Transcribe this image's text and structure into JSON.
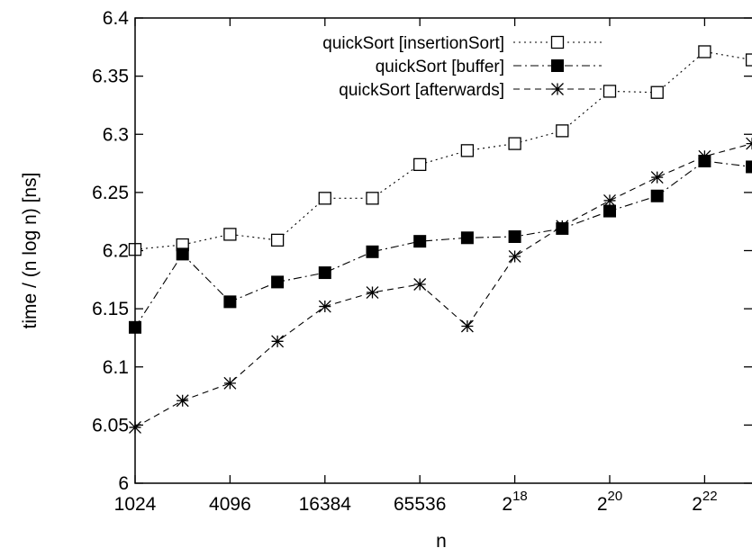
{
  "chart_data": {
    "type": "line",
    "xlabel": "n",
    "ylabel": "time / (n log n) [ns]",
    "xscale": "log2",
    "x": [
      10,
      11,
      12,
      13,
      14,
      15,
      16,
      17,
      18,
      19,
      20,
      21,
      22,
      23
    ],
    "xlim": [
      10,
      23
    ],
    "ylim": [
      6.0,
      6.4
    ],
    "yticks": [
      6,
      6.05,
      6.1,
      6.15,
      6.2,
      6.25,
      6.3,
      6.35,
      6.4
    ],
    "yticklabels": [
      "6",
      "6.05",
      "6.1",
      "6.15",
      "6.2",
      "6.25",
      "6.3",
      "6.35",
      "6.4"
    ],
    "xticks": [
      {
        "x": 10,
        "label": "1024"
      },
      {
        "x": 12,
        "label": "4096"
      },
      {
        "x": 14,
        "label": "16384"
      },
      {
        "x": 16,
        "label": "65536"
      },
      {
        "x": 18,
        "base": "2",
        "exp": "18"
      },
      {
        "x": 20,
        "base": "2",
        "exp": "20"
      },
      {
        "x": 22,
        "base": "2",
        "exp": "22"
      }
    ],
    "legend_position": "top-right",
    "series": [
      {
        "name": "quickSort [insertionSort]",
        "marker": "open-square",
        "dash": "dotted",
        "values": [
          6.201,
          6.205,
          6.214,
          6.209,
          6.245,
          6.245,
          6.274,
          6.286,
          6.292,
          6.303,
          6.337,
          6.336,
          6.371,
          6.364
        ]
      },
      {
        "name": "quickSort [buffer]",
        "marker": "filled-square",
        "dash": "dash-dot",
        "values": [
          6.134,
          6.197,
          6.156,
          6.173,
          6.181,
          6.199,
          6.208,
          6.211,
          6.212,
          6.219,
          6.234,
          6.247,
          6.277,
          6.272
        ]
      },
      {
        "name": "quickSort [afterwards]",
        "marker": "star",
        "dash": "dashed",
        "values": [
          6.048,
          6.071,
          6.086,
          6.122,
          6.152,
          6.164,
          6.171,
          6.135,
          6.195,
          6.221,
          6.243,
          6.263,
          6.281,
          6.292
        ]
      }
    ]
  }
}
